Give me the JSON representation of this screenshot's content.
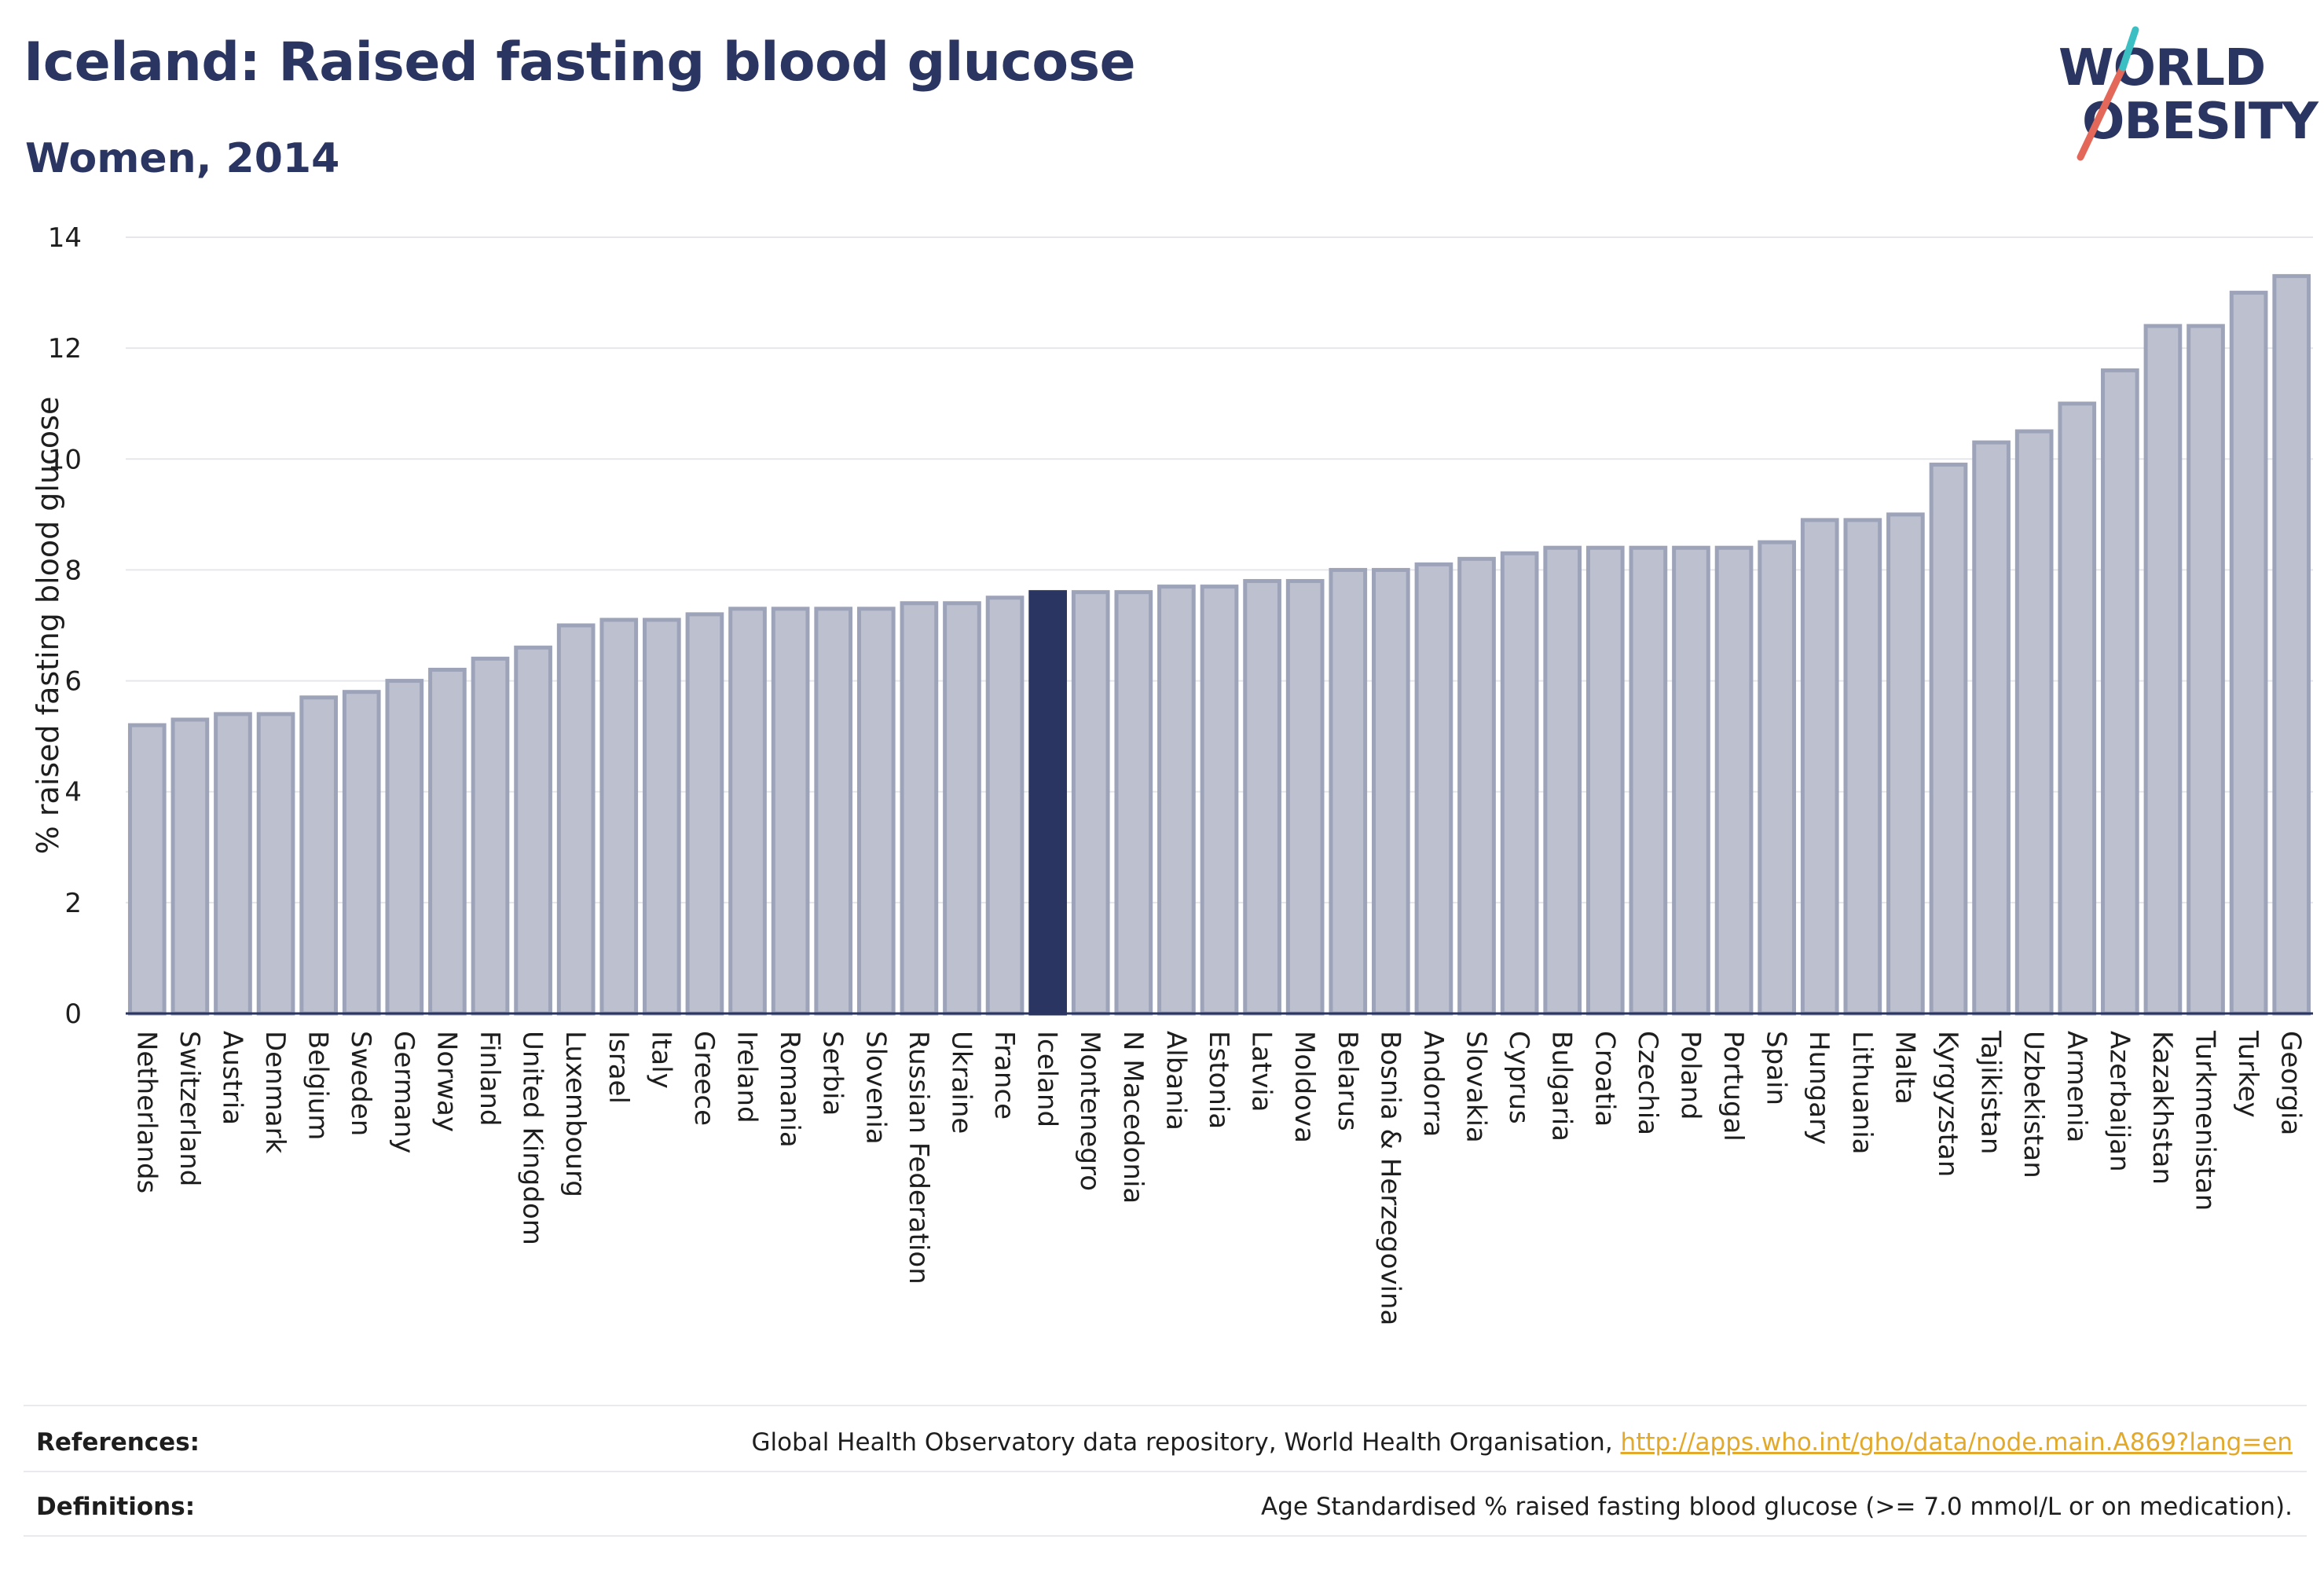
{
  "header": {
    "title": "Iceland: Raised fasting blood glucose",
    "subtitle": "Women, 2014"
  },
  "logo": {
    "line1": "WORLD",
    "line2": "OBESITY",
    "accent_colors": [
      "#e3685a",
      "#3cbfc2"
    ]
  },
  "colors": {
    "bar_fill": "#bcc0cf",
    "bar_stroke": "#9da3b9",
    "highlight": "#2b3561",
    "grid": "#e6e7eb",
    "axis_text": "#1e1e1e"
  },
  "chart_data": {
    "type": "bar",
    "title": "",
    "xlabel": "",
    "ylabel": "% raised fasting blood glucose",
    "ylim": [
      0,
      14
    ],
    "yticks": [
      0,
      2,
      4,
      6,
      8,
      10,
      12,
      14
    ],
    "grid": true,
    "highlight_category": "Iceland",
    "categories": [
      "Netherlands",
      "Switzerland",
      "Austria",
      "Denmark",
      "Belgium",
      "Sweden",
      "Germany",
      "Norway",
      "Finland",
      "United Kingdom",
      "Luxembourg",
      "Israel",
      "Italy",
      "Greece",
      "Ireland",
      "Romania",
      "Serbia",
      "Slovenia",
      "Russian Federation",
      "Ukraine",
      "France",
      "Iceland",
      "Montenegro",
      "N Macedonia",
      "Albania",
      "Estonia",
      "Latvia",
      "Moldova",
      "Belarus",
      "Bosnia & Herzegovina",
      "Andorra",
      "Slovakia",
      "Cyprus",
      "Bulgaria",
      "Croatia",
      "Czechia",
      "Poland",
      "Portugal",
      "Spain",
      "Hungary",
      "Lithuania",
      "Malta",
      "Kyrgyzstan",
      "Tajikistan",
      "Uzbekistan",
      "Armenia",
      "Azerbaijan",
      "Kazakhstan",
      "Turkmenistan",
      "Turkey",
      "Georgia"
    ],
    "values": [
      5.2,
      5.3,
      5.4,
      5.4,
      5.7,
      5.8,
      6.0,
      6.2,
      6.4,
      6.6,
      7.0,
      7.1,
      7.1,
      7.2,
      7.3,
      7.3,
      7.3,
      7.3,
      7.4,
      7.4,
      7.5,
      7.6,
      7.6,
      7.6,
      7.7,
      7.7,
      7.8,
      7.8,
      8.0,
      8.0,
      8.1,
      8.2,
      8.3,
      8.4,
      8.4,
      8.4,
      8.4,
      8.4,
      8.5,
      8.9,
      8.9,
      9.0,
      9.9,
      10.3,
      10.5,
      11.0,
      11.6,
      12.4,
      12.4,
      13.0,
      13.3
    ]
  },
  "footer": {
    "references_label": "References:",
    "references_text": "Global Health Observatory data repository, World Health Organisation, ",
    "references_link": "http://apps.who.int/gho/data/node.main.A869?lang=en",
    "definitions_label": "Definitions:",
    "definitions_text": "Age Standardised % raised fasting blood glucose (>= 7.0 mmol/L or on medication)."
  }
}
